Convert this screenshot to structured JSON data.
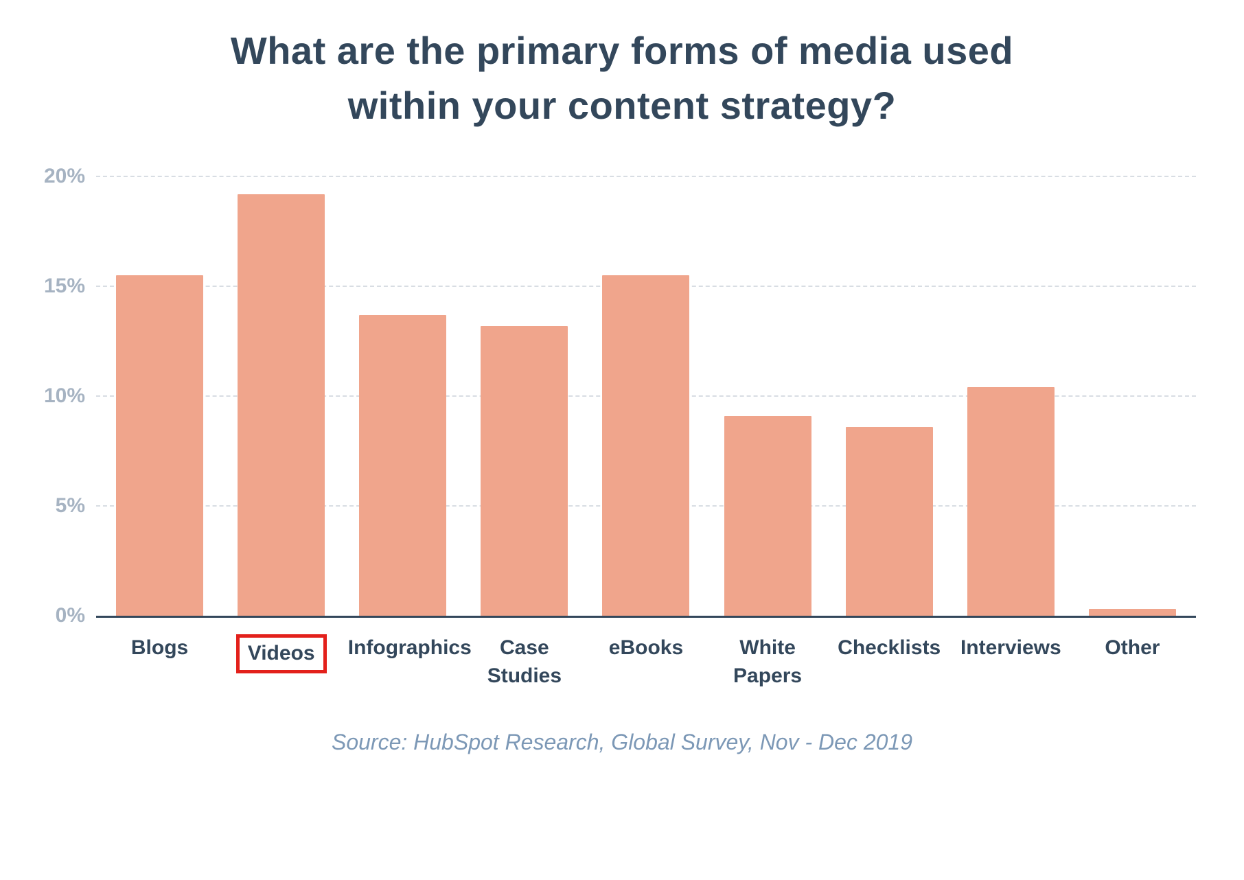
{
  "title": "What are the primary forms of media used within your content strategy?",
  "source": "Source: HubSpot Research, Global Survey, Nov - Dec 2019",
  "colors": {
    "bar": "#f0a58c",
    "title": "#33475b",
    "tick": "#a6b3c2",
    "grid": "#d8dde3",
    "axis": "#33475b",
    "source": "#7c98b6",
    "highlight": "#e3201b"
  },
  "chart_data": {
    "type": "bar",
    "title": "What are the primary forms of media used within your content strategy?",
    "categories": [
      "Blogs",
      "Videos",
      "Infographics",
      "Case Studies",
      "eBooks",
      "White Papers",
      "Checklists",
      "Interviews",
      "Other"
    ],
    "values": [
      15.5,
      19.2,
      13.7,
      13.2,
      15.5,
      9.1,
      8.6,
      10.4,
      0.3
    ],
    "xlabel": "",
    "ylabel": "",
    "ylim": [
      0,
      20
    ],
    "yticks": [
      0,
      5,
      10,
      15,
      20
    ],
    "ytick_labels": [
      "0%",
      "5%",
      "10%",
      "15%",
      "20%"
    ],
    "grid": "horizontal-dashed",
    "legend": "none",
    "highlighted_category": "Videos",
    "annotation": "red box around Videos x-axis label"
  }
}
